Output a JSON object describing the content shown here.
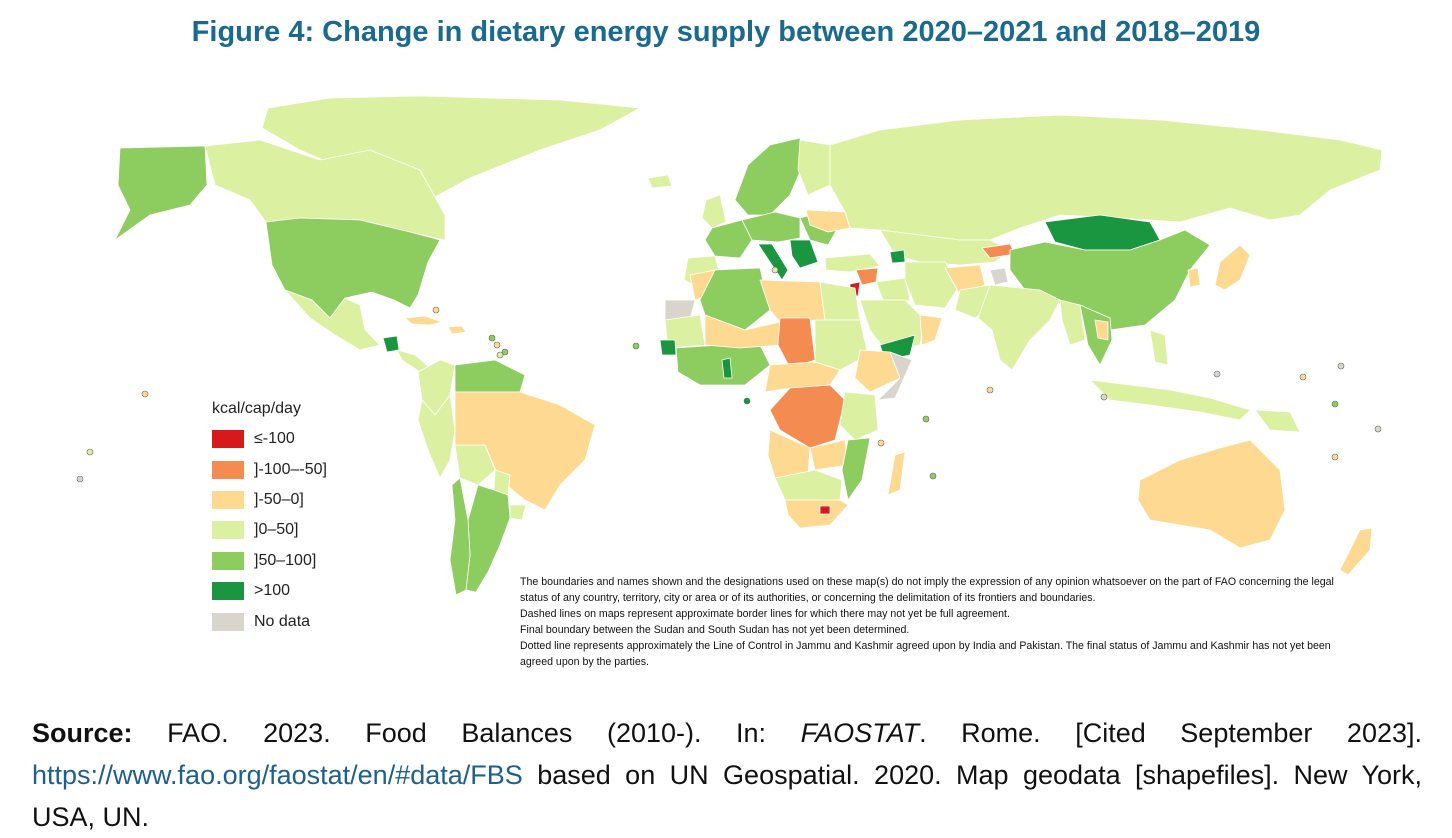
{
  "figure": {
    "title": "Figure 4: Change in dietary energy supply between 2020–2021 and 2018–2019"
  },
  "legend": {
    "title": "kcal/cap/day",
    "items": [
      {
        "label": "≤-100",
        "color": "#d7191c"
      },
      {
        "label": "]-100–-50]",
        "color": "#f48c52"
      },
      {
        "label": "]-50–0]",
        "color": "#fed991"
      },
      {
        "label": "]0–50]",
        "color": "#dcf0a1"
      },
      {
        "label": "]50–100]",
        "color": "#8dcc5e"
      },
      {
        "label": ">100",
        "color": "#1a9641"
      },
      {
        "label": "No data",
        "color": "#d9d5cc"
      }
    ]
  },
  "disclaimer": {
    "lines": [
      "The boundaries and names shown and the designations used on these map(s) do not imply the expression of any opinion whatsoever on the part of FAO concerning the legal status of any country, territory, city or area or of its authorities, or concerning the delimitation of its frontiers and boundaries.",
      "Dashed lines on maps represent approximate border lines for which there may not yet be full agreement.",
      "Final boundary between the Sudan and South Sudan has not yet been determined.",
      "Dotted line represents approximately the Line of Control in Jammu and Kashmir agreed upon by India and Pakistan. The final status of Jammu and Kashmir has not yet been agreed upon by the parties."
    ]
  },
  "source": {
    "label": "Source:",
    "text1": " FAO. 2023. Food Balances (2010-). In: ",
    "italic": "FAOSTAT",
    "text2": ". Rome. [Cited September 2023]. ",
    "link": "https://www.fao.org/faostat/en/#data/FBS",
    "text3": " based on UN Geospatial. 2020. Map geodata [shapefiles]. New York, USA, UN."
  }
}
